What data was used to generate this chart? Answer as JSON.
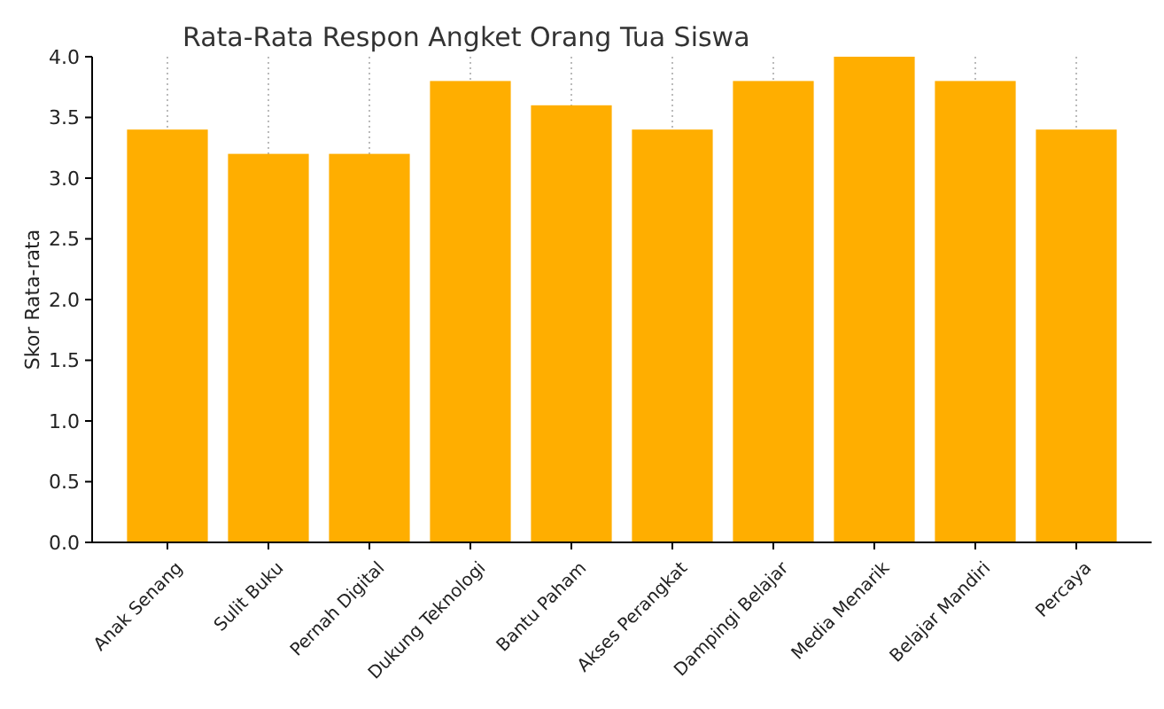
{
  "chart_data": {
    "type": "bar",
    "title": "Rata-Rata Respon Angket Orang Tua Siswa",
    "ylabel": "Skor Rata-rata",
    "categories": [
      "Anak Senang",
      "Sulit Buku",
      "Pernah Digital",
      "Dukung Teknologi",
      "Bantu Paham",
      "Akses Perangkat",
      "Dampingi Belajar",
      "Media Menarik",
      "Belajar Mandiri",
      "Percaya"
    ],
    "values": [
      3.4,
      3.2,
      3.2,
      3.8,
      3.6,
      3.4,
      3.8,
      4.0,
      3.8,
      3.4
    ],
    "color": "#ffae00",
    "ylim": [
      0,
      4
    ],
    "yticks": [
      {
        "value": 0,
        "label": "0.0"
      },
      {
        "value": 0.5,
        "label": "0.5"
      },
      {
        "value": 1,
        "label": "1.0"
      },
      {
        "value": 1.5,
        "label": "1.5"
      },
      {
        "value": 2,
        "label": "2.0"
      },
      {
        "value": 2.5,
        "label": "2.5"
      },
      {
        "value": 3,
        "label": "3.0"
      },
      {
        "value": 3.5,
        "label": "3.5"
      },
      {
        "value": 4,
        "label": "4.0"
      }
    ],
    "grid": "x"
  }
}
